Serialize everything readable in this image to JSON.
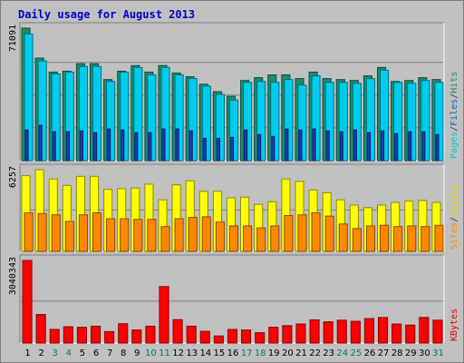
{
  "chart_data": {
    "type": "bar",
    "title": "Daily usage for August 2013",
    "categories": [
      "1",
      "2",
      "3",
      "4",
      "5",
      "6",
      "7",
      "8",
      "9",
      "10",
      "11",
      "12",
      "13",
      "14",
      "15",
      "16",
      "17",
      "18",
      "19",
      "20",
      "21",
      "22",
      "23",
      "24",
      "25",
      "26",
      "27",
      "28",
      "29",
      "30",
      "31"
    ],
    "weekend_days": [
      "3",
      "4",
      "10",
      "11",
      "17",
      "18",
      "24",
      "25",
      "31"
    ],
    "panels": [
      {
        "id": "hits",
        "max_label": "71091",
        "ymax": 71091,
        "right_labels": [
          {
            "text": "Pages",
            "color": "#00c8e6"
          },
          {
            "text": "/",
            "color": "#333333"
          },
          {
            "text": "Files",
            "color": "#0066cc"
          },
          {
            "text": "/",
            "color": "#333333"
          },
          {
            "text": "Hits",
            "color": "#1e8c6e"
          }
        ],
        "series": [
          {
            "name": "Hits",
            "color": "#1e8c6e",
            "values": [
              71091,
              55000,
              47500,
              48000,
              52000,
              52000,
              43500,
              48000,
              51000,
              47500,
              51000,
              47000,
              45000,
              41000,
              37000,
              34500,
              43000,
              44500,
              46000,
              46000,
              44000,
              47500,
              44000,
              43500,
              43000,
              45500,
              50000,
              42500,
              43000,
              44500,
              43500
            ]
          },
          {
            "name": "Files",
            "color": "#00ccee",
            "values": [
              68000,
              53500,
              46500,
              47500,
              50500,
              50500,
              42500,
              47500,
              50000,
              46000,
              50000,
              46000,
              44000,
              40000,
              35500,
              32500,
              42000,
              42500,
              42000,
              43500,
              40500,
              45500,
              42000,
              42000,
              41500,
              44000,
              48500,
              42000,
              41500,
              43000,
              42000
            ]
          },
          {
            "name": "Pages",
            "color": "#1a3cb8",
            "values": [
              16500,
              19000,
              15500,
              15500,
              16000,
              15000,
              17000,
              16500,
              15000,
              15000,
              17000,
              17000,
              16000,
              12000,
              12000,
              12500,
              16500,
              14000,
              13000,
              17000,
              16500,
              17000,
              16000,
              15500,
              16500,
              15000,
              16000,
              14500,
              15500,
              15500,
              14000
            ]
          }
        ]
      },
      {
        "id": "visits",
        "max_label": "6257",
        "ymax": 6257,
        "right_labels": [
          {
            "text": "Sites",
            "color": "#ff8800"
          },
          {
            "text": "/",
            "color": "#333333"
          },
          {
            "text": "Visits",
            "color": "#dddd00"
          }
        ],
        "series": [
          {
            "name": "Visits",
            "color": "#ffff00",
            "values": [
              5800,
              6257,
              5550,
              5050,
              5750,
              5750,
              4750,
              4800,
              4850,
              5150,
              3950,
              5100,
              5400,
              4600,
              4600,
              4100,
              4150,
              3600,
              3800,
              5550,
              5350,
              4700,
              4500,
              3950,
              3550,
              3350,
              3550,
              3750,
              3850,
              3900,
              3750
            ]
          },
          {
            "name": "Sites",
            "color": "#ff8800",
            "values": [
              2950,
              2900,
              2800,
              2300,
              2800,
              2950,
              2500,
              2500,
              2450,
              2450,
              1900,
              2500,
              2600,
              2650,
              2250,
              1950,
              1950,
              1800,
              1950,
              2750,
              2800,
              2950,
              2700,
              2100,
              1750,
              1950,
              2000,
              1900,
              1950,
              1900,
              2000
            ]
          }
        ]
      },
      {
        "id": "kbytes",
        "max_label": "3040343",
        "ymax": 3040343,
        "right_labels": [
          {
            "text": "KBytes",
            "color": "#ee0000"
          }
        ],
        "series": [
          {
            "name": "KBytes",
            "color": "#ff0000",
            "values": [
              3040343,
              1050000,
              500000,
              600000,
              580000,
              620000,
              420000,
              710000,
              480000,
              620000,
              2080000,
              860000,
              620000,
              430000,
              260000,
              500000,
              480000,
              380000,
              580000,
              640000,
              700000,
              850000,
              780000,
              840000,
              800000,
              900000,
              940000,
              700000,
              660000,
              940000,
              840000
            ]
          }
        ]
      }
    ]
  }
}
